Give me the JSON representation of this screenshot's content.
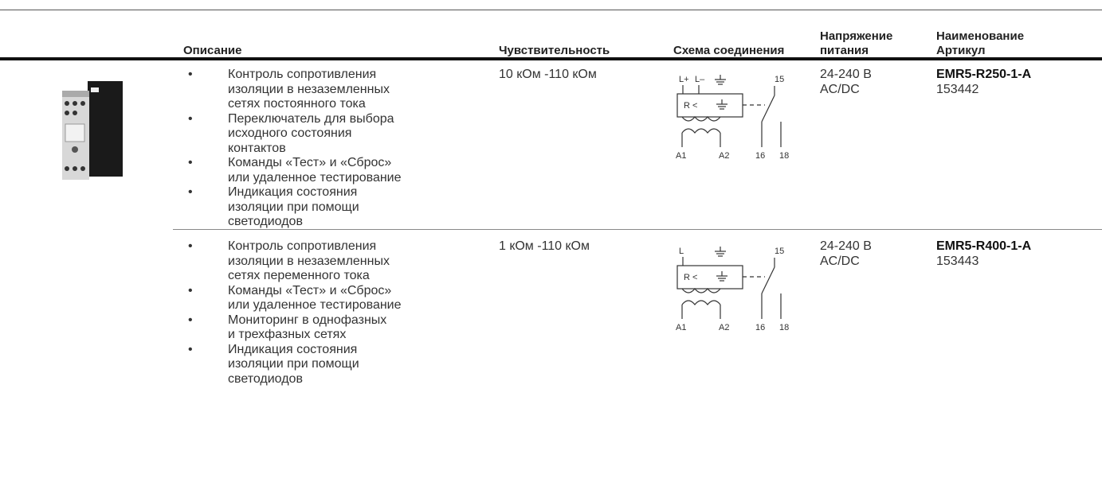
{
  "table": {
    "header": [
      [
        "Описание"
      ],
      [
        "Чувствительность"
      ],
      [
        "Схема соединения"
      ],
      [
        "Напряжение",
        "питания"
      ],
      [
        "Наименование",
        "Артикул"
      ]
    ],
    "rows": [
      {
        "description": [
          [
            "Контроль сопротивления",
            "изоляции в незаземленных",
            "сетях постоянного тока"
          ],
          [
            "Переключатель для выбора",
            "исходного состояния",
            "контактов"
          ],
          [
            "Команды «Тест» и «Сброс»",
            "или удаленное тестирование"
          ],
          [
            "Индикация состояния",
            "изоляции при помощи",
            "светодиодов"
          ]
        ],
        "sensitivity": "10 кОм -110 кОм",
        "schematic": {
          "top": [
            "L+",
            "L–",
            "15"
          ],
          "relay": "R <",
          "bottom": [
            "A1",
            "A2",
            "16",
            "18"
          ]
        },
        "voltage": [
          "24-240 В",
          "AC/DC"
        ],
        "name": "EMR5-R250-1-A",
        "article": "153442"
      },
      {
        "description": [
          [
            "Контроль сопротивления",
            "изоляции в незаземленных",
            "сетях переменного тока"
          ],
          [
            "Команды «Тест» и «Сброс»",
            "или удаленное тестирование"
          ],
          [
            "Мониторинг в однофазных",
            "и трехфазных сетях"
          ],
          [
            "Индикация состояния",
            "изоляции при помощи",
            "светодиодов"
          ]
        ],
        "sensitivity": "1 кОм -110 кОм",
        "schematic": {
          "top": [
            "L",
            "15"
          ],
          "relay": "R <",
          "bottom": [
            "A1",
            "A2",
            "16",
            "18"
          ]
        },
        "voltage": [
          "24-240 В",
          "AC/DC"
        ],
        "name": "EMR5-R400-1-A",
        "article": "153443"
      }
    ]
  }
}
